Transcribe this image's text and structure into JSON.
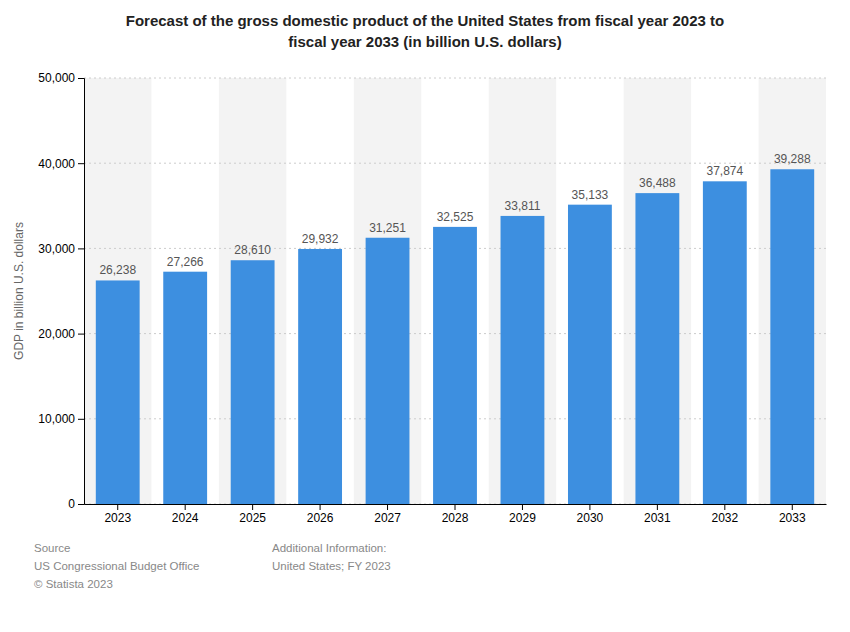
{
  "chart_data": {
    "type": "bar",
    "title": "Forecast of the gross domestic product of the United States from fiscal year 2023 to\nfiscal year 2033 (in billion U.S. dollars)",
    "ylabel": "GDP in billion U.S. dollars",
    "categories": [
      "2023",
      "2024",
      "2025",
      "2026",
      "2027",
      "2028",
      "2029",
      "2030",
      "2031",
      "2032",
      "2033"
    ],
    "values": [
      26238,
      27266,
      28610,
      29932,
      31251,
      32525,
      33811,
      35133,
      36488,
      37874,
      39288
    ],
    "value_labels": [
      "26,238",
      "27,266",
      "28,610",
      "29,932",
      "31,251",
      "32,525",
      "33,811",
      "35,133",
      "36,488",
      "37,874",
      "39,288"
    ],
    "color": "#3d8fe0",
    "ylim": [
      0,
      50000
    ],
    "yticks": [
      0,
      {
        "value": 10000,
        "label": "10,000"
      },
      {
        "value": 20000,
        "label": "20,000"
      },
      {
        "value": 30000,
        "label": "30,000"
      },
      {
        "value": 40000,
        "label": "40,000"
      },
      {
        "value": 50000,
        "label": "50,000"
      }
    ],
    "grid": true,
    "data_labels": true,
    "annotations": [
      "Source\nUS Congressional Budget Office\n© Statista 2023",
      "Additional Information:\nUnited States; FY 2023"
    ]
  }
}
